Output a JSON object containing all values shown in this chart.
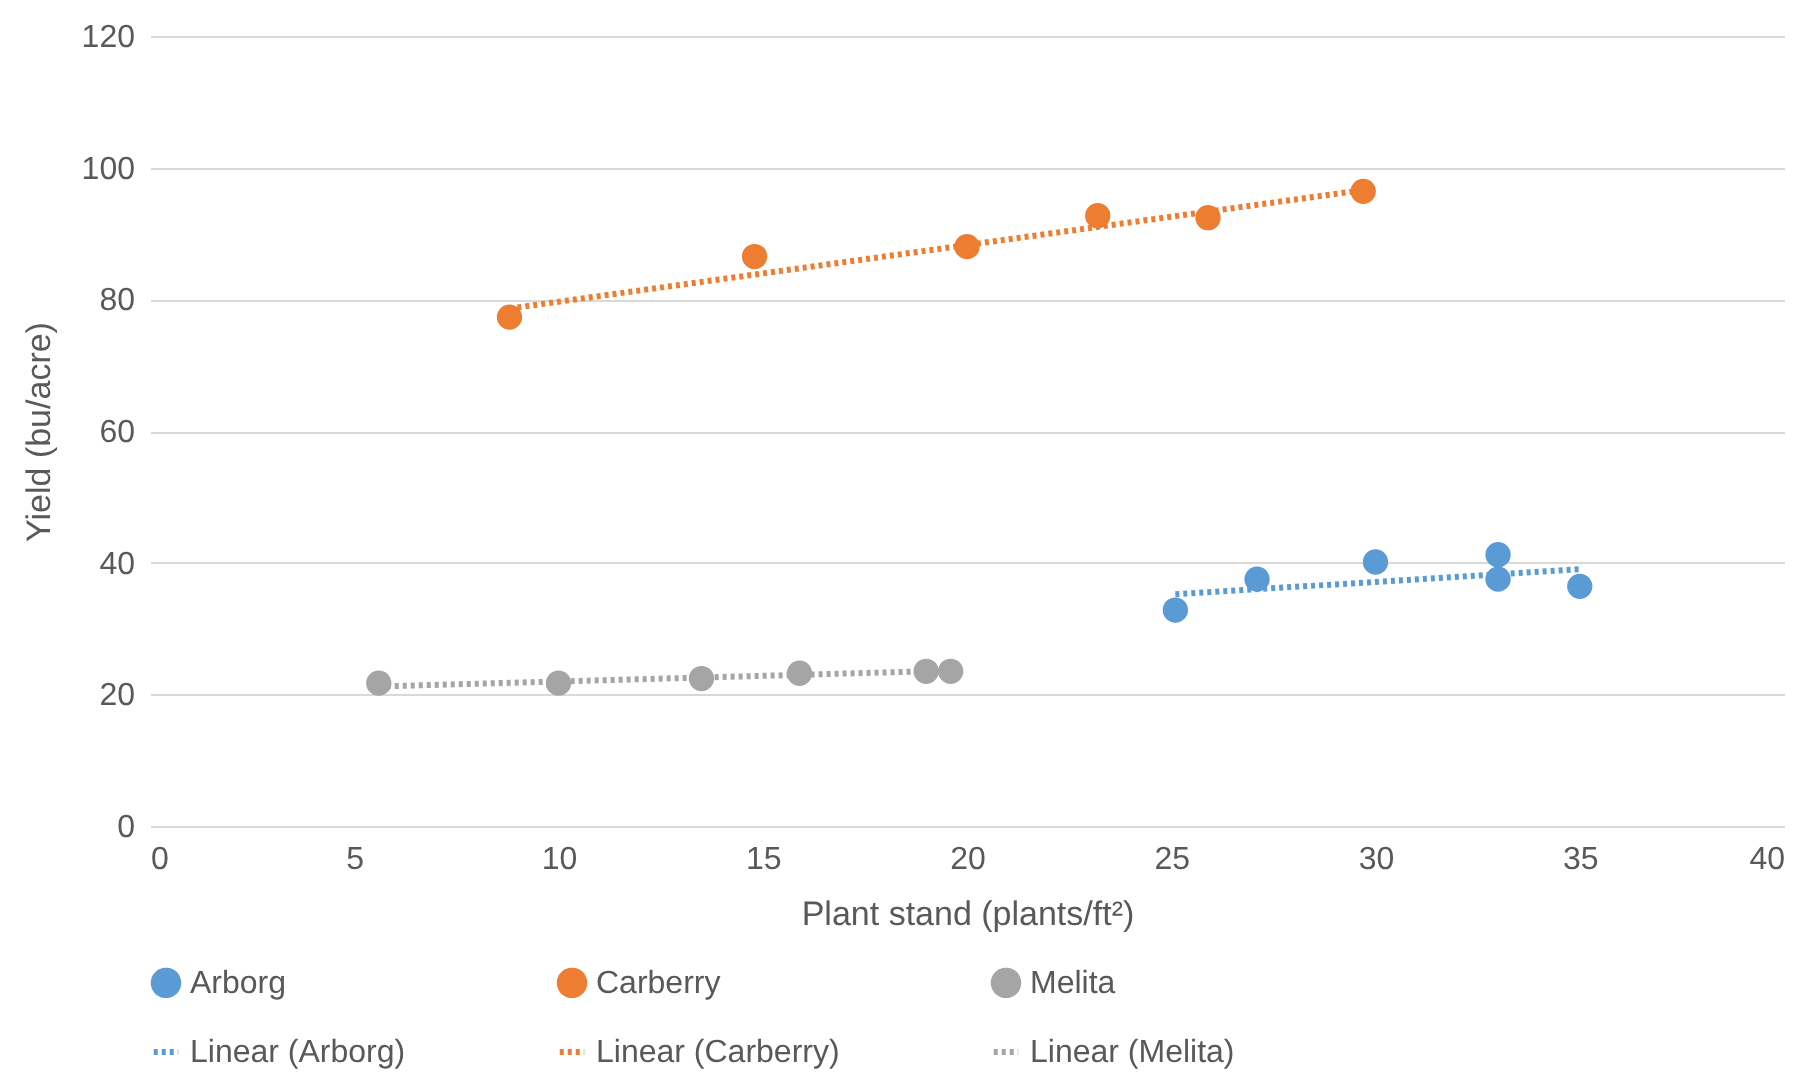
{
  "chart_data": {
    "type": "scatter",
    "xlabel": "Plant stand (plants/ft²)",
    "ylabel": "Yield (bu/acre)",
    "xlim": [
      0,
      40
    ],
    "xticks": [
      0,
      5,
      10,
      15,
      20,
      25,
      30,
      35,
      40
    ],
    "ylim": [
      0,
      120
    ],
    "yticks": [
      0,
      20,
      40,
      60,
      80,
      100,
      120
    ],
    "grid": "y",
    "legend": "bottom",
    "series": [
      {
        "name": "Arborg",
        "marker": "circle",
        "color": "#5b9bd5",
        "x": [
          25.1,
          27.1,
          30.0,
          33.0,
          33.0,
          35.0
        ],
        "values": [
          32.8,
          37.5,
          40.1,
          41.2,
          37.5,
          36.4
        ]
      },
      {
        "name": "Carberry",
        "marker": "circle",
        "color": "#ed7d31",
        "x": [
          8.8,
          14.8,
          20.0,
          23.2,
          25.9,
          29.7
        ],
        "values": [
          77.3,
          86.5,
          88.0,
          92.7,
          92.4,
          96.4
        ]
      },
      {
        "name": "Melita",
        "marker": "circle",
        "color": "#a5a5a5",
        "x": [
          5.6,
          10.0,
          13.5,
          15.9,
          19.0,
          19.6
        ],
        "values": [
          21.7,
          21.7,
          22.4,
          23.2,
          23.5,
          23.5
        ]
      },
      {
        "name": "Linear (Arborg)",
        "type": "line",
        "line_style": "dotted",
        "color": "#5b9bd5",
        "x": [
          25.1,
          35.0
        ],
        "values": [
          35.2,
          39.0
        ]
      },
      {
        "name": "Linear (Carberry)",
        "type": "line",
        "line_style": "dotted",
        "color": "#ed7d31",
        "x": [
          8.8,
          29.7
        ],
        "values": [
          78.6,
          96.6
        ]
      },
      {
        "name": "Linear (Melita)",
        "type": "line",
        "line_style": "dotted",
        "color": "#a5a5a5",
        "x": [
          5.6,
          19.6
        ],
        "values": [
          21.2,
          23.6
        ]
      }
    ]
  }
}
